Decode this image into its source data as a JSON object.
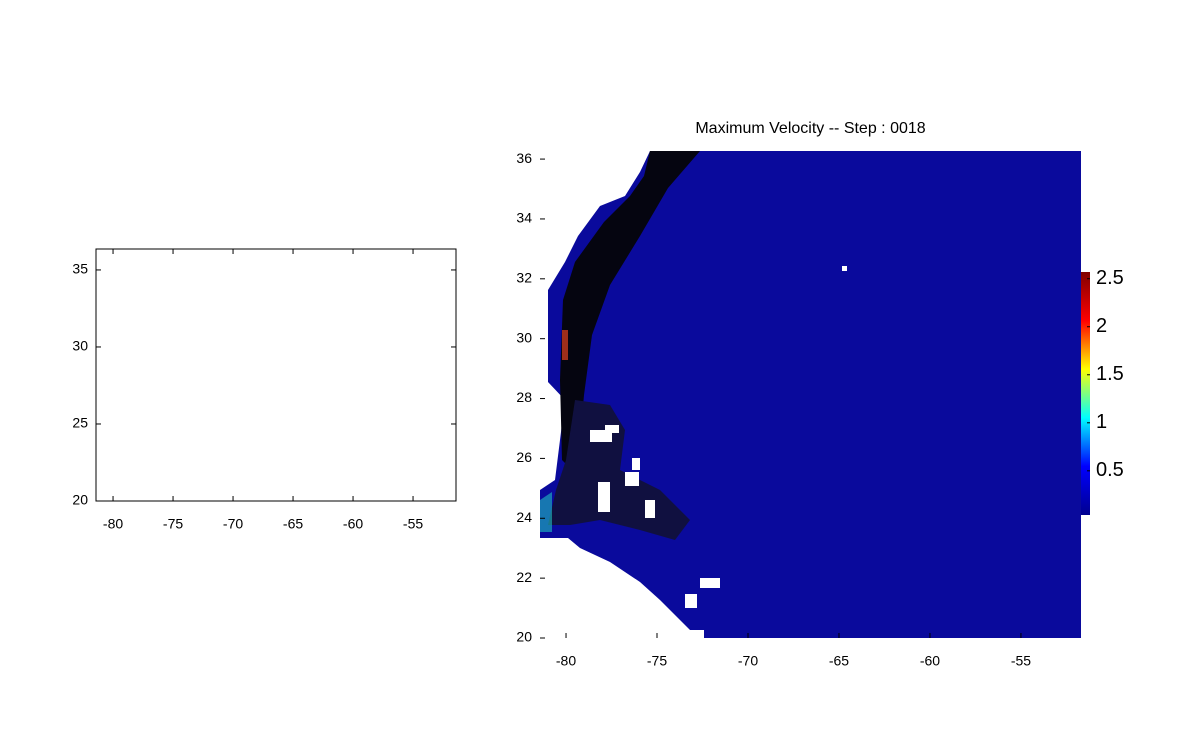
{
  "chart_data": [
    {
      "type": "blank",
      "box": true,
      "xlim": [
        -81.42,
        -51.42
      ],
      "xticks": [
        -80,
        -75,
        -70,
        -65,
        -60,
        -55
      ],
      "ylim": [
        20,
        36.36
      ],
      "yticks": [
        20,
        25,
        30,
        35
      ]
    },
    {
      "type": "image",
      "box": false,
      "title": "Maximum Velocity -- Step : 0018",
      "xlim": [
        -81.43,
        -51.7
      ],
      "xticks": [
        -80,
        -75,
        -70,
        -65,
        -60,
        -55
      ],
      "ylim": [
        20,
        36.27
      ],
      "yticks": [
        20,
        22,
        24,
        26,
        28,
        30,
        32,
        34,
        36
      ],
      "colorbar": {
        "clim": [
          0.04,
          2.57
        ],
        "ticks": [
          0.5,
          1,
          1.5,
          2,
          2.5
        ],
        "colormap": [
          "#00008f",
          "#0000ff",
          "#00ffff",
          "#ffff00",
          "#ff0000",
          "#800000"
        ]
      }
    }
  ]
}
